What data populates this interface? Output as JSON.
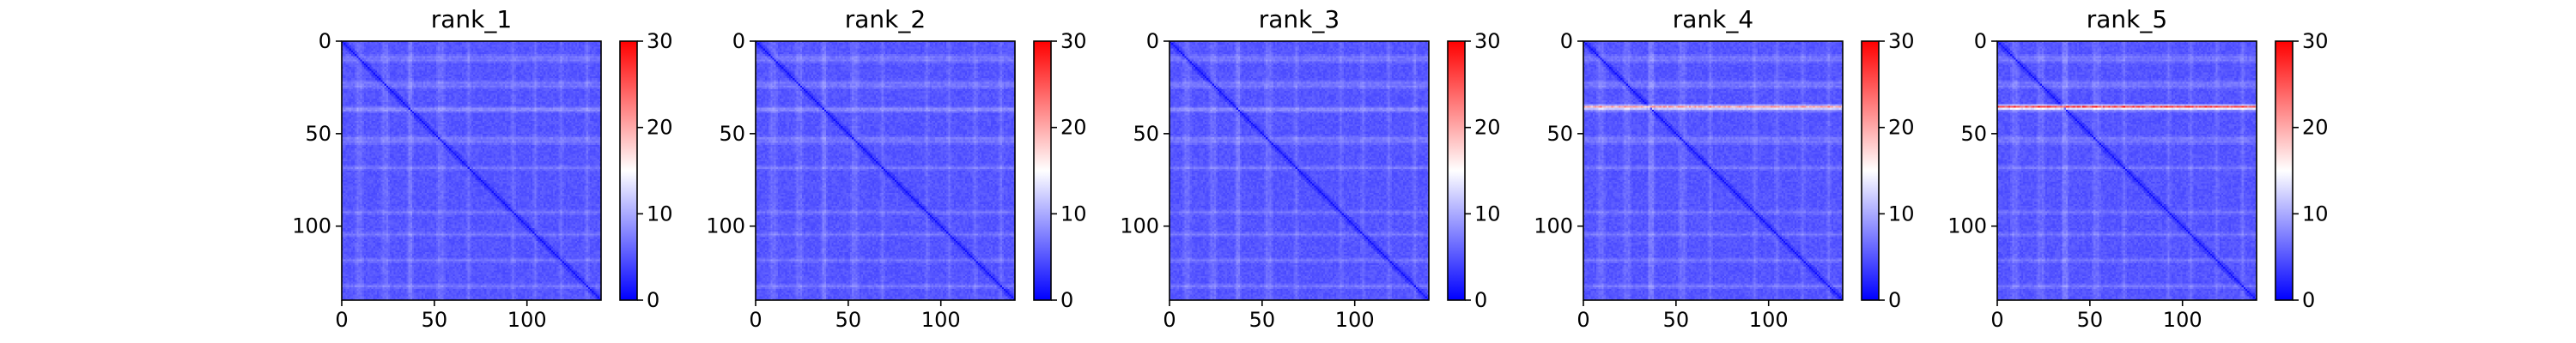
{
  "chart_data": {
    "type": "heatmap",
    "grid": false,
    "colormap": {
      "name": "bwr",
      "stops": [
        "#0000ff",
        "#ffffff",
        "#ff0000"
      ]
    },
    "matrix_size": 140,
    "color_range": [
      0,
      30
    ],
    "axis_ticks": {
      "x": [
        0,
        50,
        100
      ],
      "y": [
        0,
        50,
        100
      ]
    },
    "colorbar_ticks": [
      0,
      10,
      20,
      30
    ],
    "panels": [
      {
        "title": "rank_1",
        "highlight_row": null,
        "highlight_strength": 0
      },
      {
        "title": "rank_2",
        "highlight_row": null,
        "highlight_strength": 0
      },
      {
        "title": "rank_3",
        "highlight_row": null,
        "highlight_strength": 0
      },
      {
        "title": "rank_4",
        "highlight_row": 35,
        "highlight_strength": 16
      },
      {
        "title": "rank_5",
        "highlight_row": 35,
        "highlight_strength": 22
      }
    ]
  }
}
